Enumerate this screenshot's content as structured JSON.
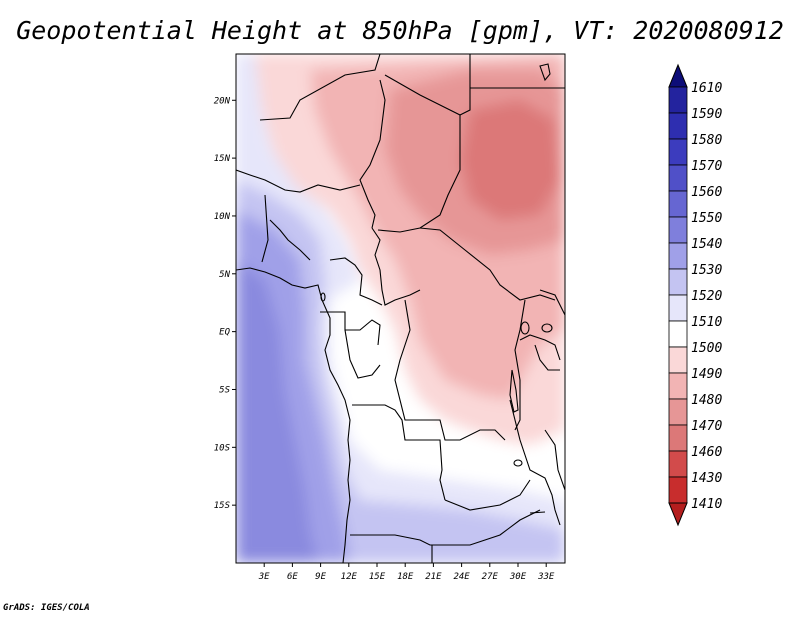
{
  "title": "Geopotential Height at 850hPa [gpm], VT: 2020080912",
  "credit": "GrADS: IGES/COLA",
  "map": {
    "lon_range": [
      0,
      35
    ],
    "lat_range": [
      -20,
      24
    ],
    "lat_ticks": [
      {
        "value": 20,
        "label": "20N"
      },
      {
        "value": 15,
        "label": "15N"
      },
      {
        "value": 10,
        "label": "10N"
      },
      {
        "value": 5,
        "label": "5N"
      },
      {
        "value": 0,
        "label": "EQ"
      },
      {
        "value": -5,
        "label": "5S"
      },
      {
        "value": -10,
        "label": "10S"
      },
      {
        "value": -15,
        "label": "15S"
      }
    ],
    "lon_ticks": [
      {
        "value": 3,
        "label": "3E"
      },
      {
        "value": 6,
        "label": "6E"
      },
      {
        "value": 9,
        "label": "9E"
      },
      {
        "value": 12,
        "label": "12E"
      },
      {
        "value": 15,
        "label": "15E"
      },
      {
        "value": 18,
        "label": "18E"
      },
      {
        "value": 21,
        "label": "21E"
      },
      {
        "value": 24,
        "label": "24E"
      },
      {
        "value": 27,
        "label": "27E"
      },
      {
        "value": 30,
        "label": "30E"
      },
      {
        "value": 33,
        "label": "33E"
      }
    ]
  },
  "colorbar": {
    "levels": [
      {
        "label": "1610",
        "color": "#1a1a8c"
      },
      {
        "label": "1590",
        "color": "#23239e"
      },
      {
        "label": "1580",
        "color": "#2e2eb0"
      },
      {
        "label": "1570",
        "color": "#3c3cbe"
      },
      {
        "label": "1560",
        "color": "#5050c8"
      },
      {
        "label": "1550",
        "color": "#6666d2"
      },
      {
        "label": "1540",
        "color": "#7f7fdc"
      },
      {
        "label": "1530",
        "color": "#a0a0e8"
      },
      {
        "label": "1520",
        "color": "#c4c4f2"
      },
      {
        "label": "1510",
        "color": "#e6e6fa"
      },
      {
        "label": "1500",
        "color": "#ffffff"
      },
      {
        "label": "1490",
        "color": "#fad8d8"
      },
      {
        "label": "1480",
        "color": "#f2b4b4"
      },
      {
        "label": "1470",
        "color": "#e69696"
      },
      {
        "label": "1460",
        "color": "#dc7878"
      },
      {
        "label": "1430",
        "color": "#d24b4b"
      },
      {
        "label": "1410",
        "color": "#c82d2d"
      }
    ],
    "top_color": "#0d0d78",
    "bottom_color": "#b41e1e"
  }
}
